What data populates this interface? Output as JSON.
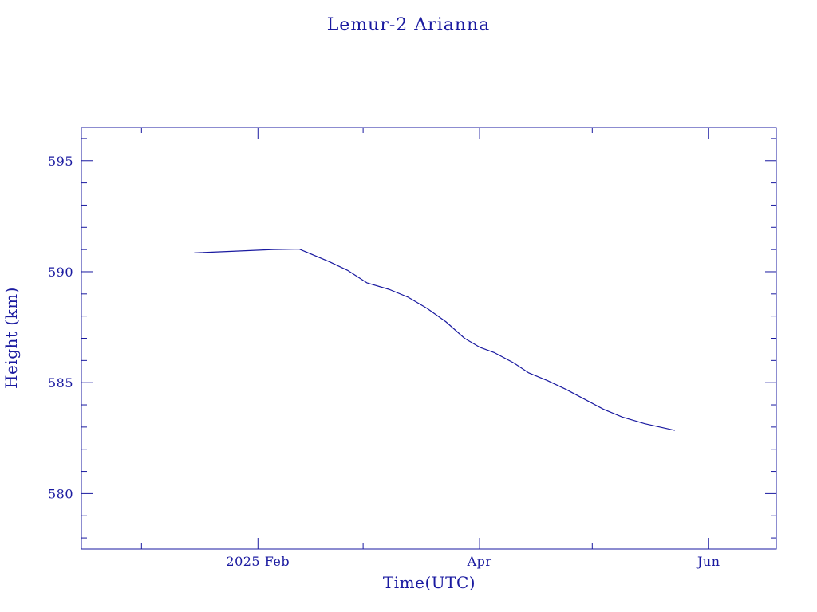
{
  "colors": {
    "ink": "#1a1aa0",
    "background": "#ffffff"
  },
  "chart_data": {
    "type": "line",
    "title": "Lemur-2 Arianna",
    "xlabel": "Time(UTC)",
    "ylabel": "Height (km)",
    "x_tick_labels": [
      {
        "date": "2025-02-01",
        "label": "2025 Feb"
      },
      {
        "date": "2025-04-01",
        "label": "Apr"
      },
      {
        "date": "2025-06-01",
        "label": "Jun"
      }
    ],
    "xlim": [
      "2024-12-16",
      "2025-06-19"
    ],
    "ylim": [
      577.5,
      596.5
    ],
    "y_ticks": [
      580,
      585,
      590,
      595
    ],
    "grid": false,
    "series": [
      {
        "points": [
          {
            "x": "2025-01-15",
            "y": 590.85
          },
          {
            "x": "2025-01-25",
            "y": 590.92
          },
          {
            "x": "2025-02-05",
            "y": 591.0
          },
          {
            "x": "2025-02-12",
            "y": 591.02
          },
          {
            "x": "2025-02-20",
            "y": 590.45
          },
          {
            "x": "2025-02-25",
            "y": 590.05
          },
          {
            "x": "2025-03-02",
            "y": 589.5
          },
          {
            "x": "2025-03-08",
            "y": 589.2
          },
          {
            "x": "2025-03-13",
            "y": 588.85
          },
          {
            "x": "2025-03-18",
            "y": 588.35
          },
          {
            "x": "2025-03-23",
            "y": 587.75
          },
          {
            "x": "2025-03-28",
            "y": 587.0
          },
          {
            "x": "2025-04-01",
            "y": 586.6
          },
          {
            "x": "2025-04-05",
            "y": 586.35
          },
          {
            "x": "2025-04-10",
            "y": 585.9
          },
          {
            "x": "2025-04-14",
            "y": 585.45
          },
          {
            "x": "2025-04-19",
            "y": 585.1
          },
          {
            "x": "2025-04-24",
            "y": 584.7
          },
          {
            "x": "2025-04-29",
            "y": 584.25
          },
          {
            "x": "2025-05-04",
            "y": 583.8
          },
          {
            "x": "2025-05-09",
            "y": 583.45
          },
          {
            "x": "2025-05-15",
            "y": 583.15
          },
          {
            "x": "2025-05-23",
            "y": 582.85
          }
        ]
      }
    ]
  }
}
